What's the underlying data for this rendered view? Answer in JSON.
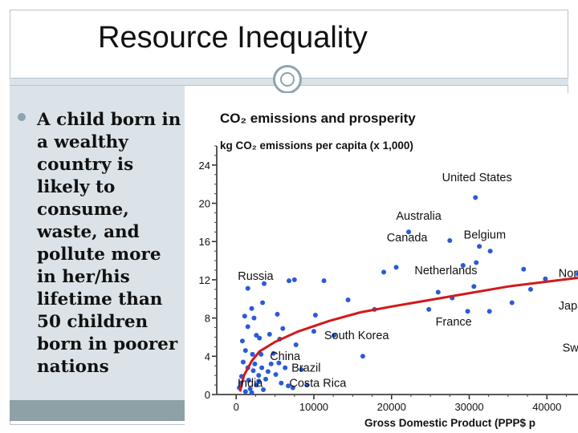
{
  "slide": {
    "title": "Resource Inequality",
    "bullet": "A child born in a wealthy country is likely to consume, waste, and pollute more in her/his lifetime than 50 children born in poorer nations"
  },
  "colors": {
    "points": "#2a5bd7",
    "curve": "#d11a1a",
    "panel": "#dbe3e8",
    "footer": "#8ea1a6"
  },
  "chart_data": {
    "type": "scatter",
    "title": "CO₂ emissions and prosperity",
    "ylabel": "kg CO₂ emissions per capita (x 1,000)",
    "xlabel": "Gross Domestic Product (PPP$ p",
    "xlim": [
      -2500,
      44000
    ],
    "ylim": [
      0,
      26
    ],
    "x_ticks": [
      0,
      10000,
      20000,
      30000,
      40000
    ],
    "y_ticks": [
      0,
      4,
      8,
      12,
      16,
      20,
      24
    ],
    "labels": [
      {
        "text": "United States",
        "x": 31000,
        "y": 22.3
      },
      {
        "text": "Australia",
        "x": 23500,
        "y": 18.3
      },
      {
        "text": "Canada",
        "x": 22000,
        "y": 16.0
      },
      {
        "text": "Belgium",
        "x": 32000,
        "y": 16.3
      },
      {
        "text": "Netherlands",
        "x": 27000,
        "y": 12.6
      },
      {
        "text": "Norw",
        "x": 41500,
        "y": 12.3
      },
      {
        "text": "Japa",
        "x": 41500,
        "y": 8.9
      },
      {
        "text": "Russia",
        "x": 2500,
        "y": 12.0
      },
      {
        "text": "France",
        "x": 28000,
        "y": 7.2
      },
      {
        "text": "South Korea",
        "x": 15500,
        "y": 5.8
      },
      {
        "text": "Swi",
        "x": 42000,
        "y": 4.5
      },
      {
        "text": "China",
        "x": 6300,
        "y": 3.6
      },
      {
        "text": "Brazil",
        "x": 9000,
        "y": 2.4
      },
      {
        "text": "Costa Rica",
        "x": 10500,
        "y": 0.8
      },
      {
        "text": "India",
        "x": 1800,
        "y": 0.8
      }
    ],
    "points": [
      [
        30800,
        20.6
      ],
      [
        22200,
        17.0
      ],
      [
        27500,
        16.1
      ],
      [
        31300,
        15.5
      ],
      [
        32700,
        15.0
      ],
      [
        30900,
        13.8
      ],
      [
        29200,
        13.5
      ],
      [
        37000,
        13.1
      ],
      [
        37900,
        11.0
      ],
      [
        39800,
        12.1
      ],
      [
        30600,
        11.3
      ],
      [
        44000,
        12.6
      ],
      [
        35500,
        9.6
      ],
      [
        27800,
        10.1
      ],
      [
        26000,
        10.7
      ],
      [
        32600,
        8.7
      ],
      [
        29800,
        8.7
      ],
      [
        19000,
        12.8
      ],
      [
        11300,
        11.9
      ],
      [
        20600,
        13.3
      ],
      [
        24800,
        8.9
      ],
      [
        17800,
        8.9
      ],
      [
        14400,
        9.9
      ],
      [
        10200,
        8.3
      ],
      [
        6000,
        6.9
      ],
      [
        5300,
        8.4
      ],
      [
        3600,
        11.6
      ],
      [
        3400,
        9.6
      ],
      [
        4300,
        6.3
      ],
      [
        6800,
        11.9
      ],
      [
        7500,
        12.0
      ],
      [
        1500,
        11.1
      ],
      [
        2000,
        9.0
      ],
      [
        1100,
        8.2
      ],
      [
        2300,
        8.0
      ],
      [
        1500,
        7.1
      ],
      [
        3000,
        5.9
      ],
      [
        1200,
        4.6
      ],
      [
        2100,
        4.2
      ],
      [
        3200,
        4.2
      ],
      [
        4500,
        3.2
      ],
      [
        900,
        3.4
      ],
      [
        1500,
        2.8
      ],
      [
        2200,
        2.5
      ],
      [
        2900,
        2.0
      ],
      [
        3800,
        1.6
      ],
      [
        5100,
        2.1
      ],
      [
        5800,
        1.2
      ],
      [
        6700,
        0.9
      ],
      [
        7300,
        0.7
      ],
      [
        700,
        1.9
      ],
      [
        1600,
        1.5
      ],
      [
        2600,
        1.0
      ],
      [
        3500,
        0.5
      ],
      [
        400,
        0.7
      ],
      [
        1200,
        0.3
      ],
      [
        2000,
        0.2
      ],
      [
        2900,
        1.4
      ],
      [
        5500,
        3.3
      ],
      [
        4800,
        4.3
      ],
      [
        7700,
        5.2
      ],
      [
        8400,
        2.6
      ],
      [
        10000,
        6.6
      ],
      [
        12600,
        6.2
      ],
      [
        16300,
        4.0
      ],
      [
        5600,
        5.8
      ],
      [
        2600,
        6.2
      ],
      [
        800,
        5.6
      ],
      [
        600,
        1.2
      ],
      [
        4100,
        2.4
      ],
      [
        6300,
        2.8
      ],
      [
        1800,
        0.6
      ],
      [
        2400,
        3.2
      ],
      [
        3300,
        2.8
      ],
      [
        9100,
        1.0
      ]
    ],
    "trend": [
      [
        500,
        0.3
      ],
      [
        1000,
        2.0
      ],
      [
        2000,
        3.5
      ],
      [
        3000,
        4.5
      ],
      [
        5000,
        5.5
      ],
      [
        8000,
        6.6
      ],
      [
        12000,
        7.7
      ],
      [
        16000,
        8.6
      ],
      [
        20000,
        9.2
      ],
      [
        25000,
        9.9
      ],
      [
        30000,
        10.6
      ],
      [
        35000,
        11.3
      ],
      [
        40000,
        11.8
      ],
      [
        44000,
        12.2
      ]
    ]
  }
}
